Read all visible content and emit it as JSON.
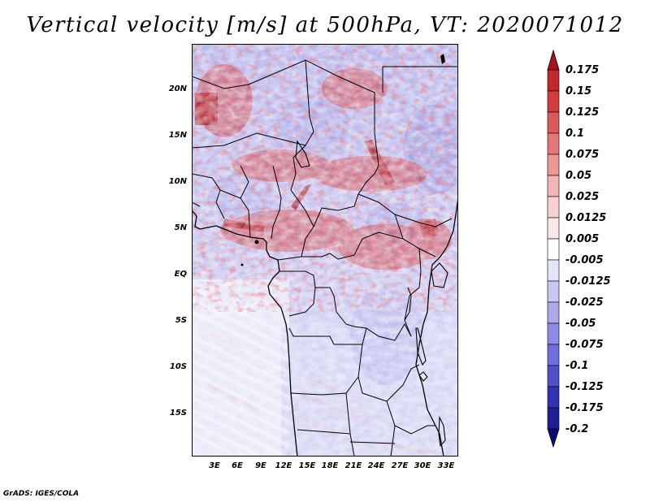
{
  "title": "Vertical velocity [m/s] at 500hPa, VT: 2020071012",
  "lat_labels": [
    "20N",
    "15N",
    "10N",
    "5N",
    "EQ",
    "5S",
    "10S",
    "15S"
  ],
  "lon_labels": [
    "3E",
    "6E",
    "9E",
    "12E",
    "15E",
    "18E",
    "21E",
    "24E",
    "27E",
    "30E",
    "33E"
  ],
  "colorbar_labels": [
    "0.175",
    "0.15",
    "0.125",
    "0.1",
    "0.075",
    "0.05",
    "0.025",
    "0.0125",
    "0.005",
    "-0.005",
    "-0.0125",
    "-0.025",
    "-0.05",
    "-0.075",
    "-0.1",
    "-0.125",
    "-0.175",
    "-0.2"
  ],
  "colorbar_colors": [
    "#a8141c",
    "#c0282c",
    "#d23c3c",
    "#dc5a5a",
    "#e47878",
    "#ec9696",
    "#f2b4b4",
    "#f8d2d2",
    "#fde8e8",
    "#ffffff",
    "#e4e4fa",
    "#c8c8f2",
    "#aaaaec",
    "#8c8ce6",
    "#6e6edc",
    "#5050cc",
    "#3232b4",
    "#1e1e96",
    "#0a0a78"
  ],
  "credit": "GrADS: IGES/COLA"
}
